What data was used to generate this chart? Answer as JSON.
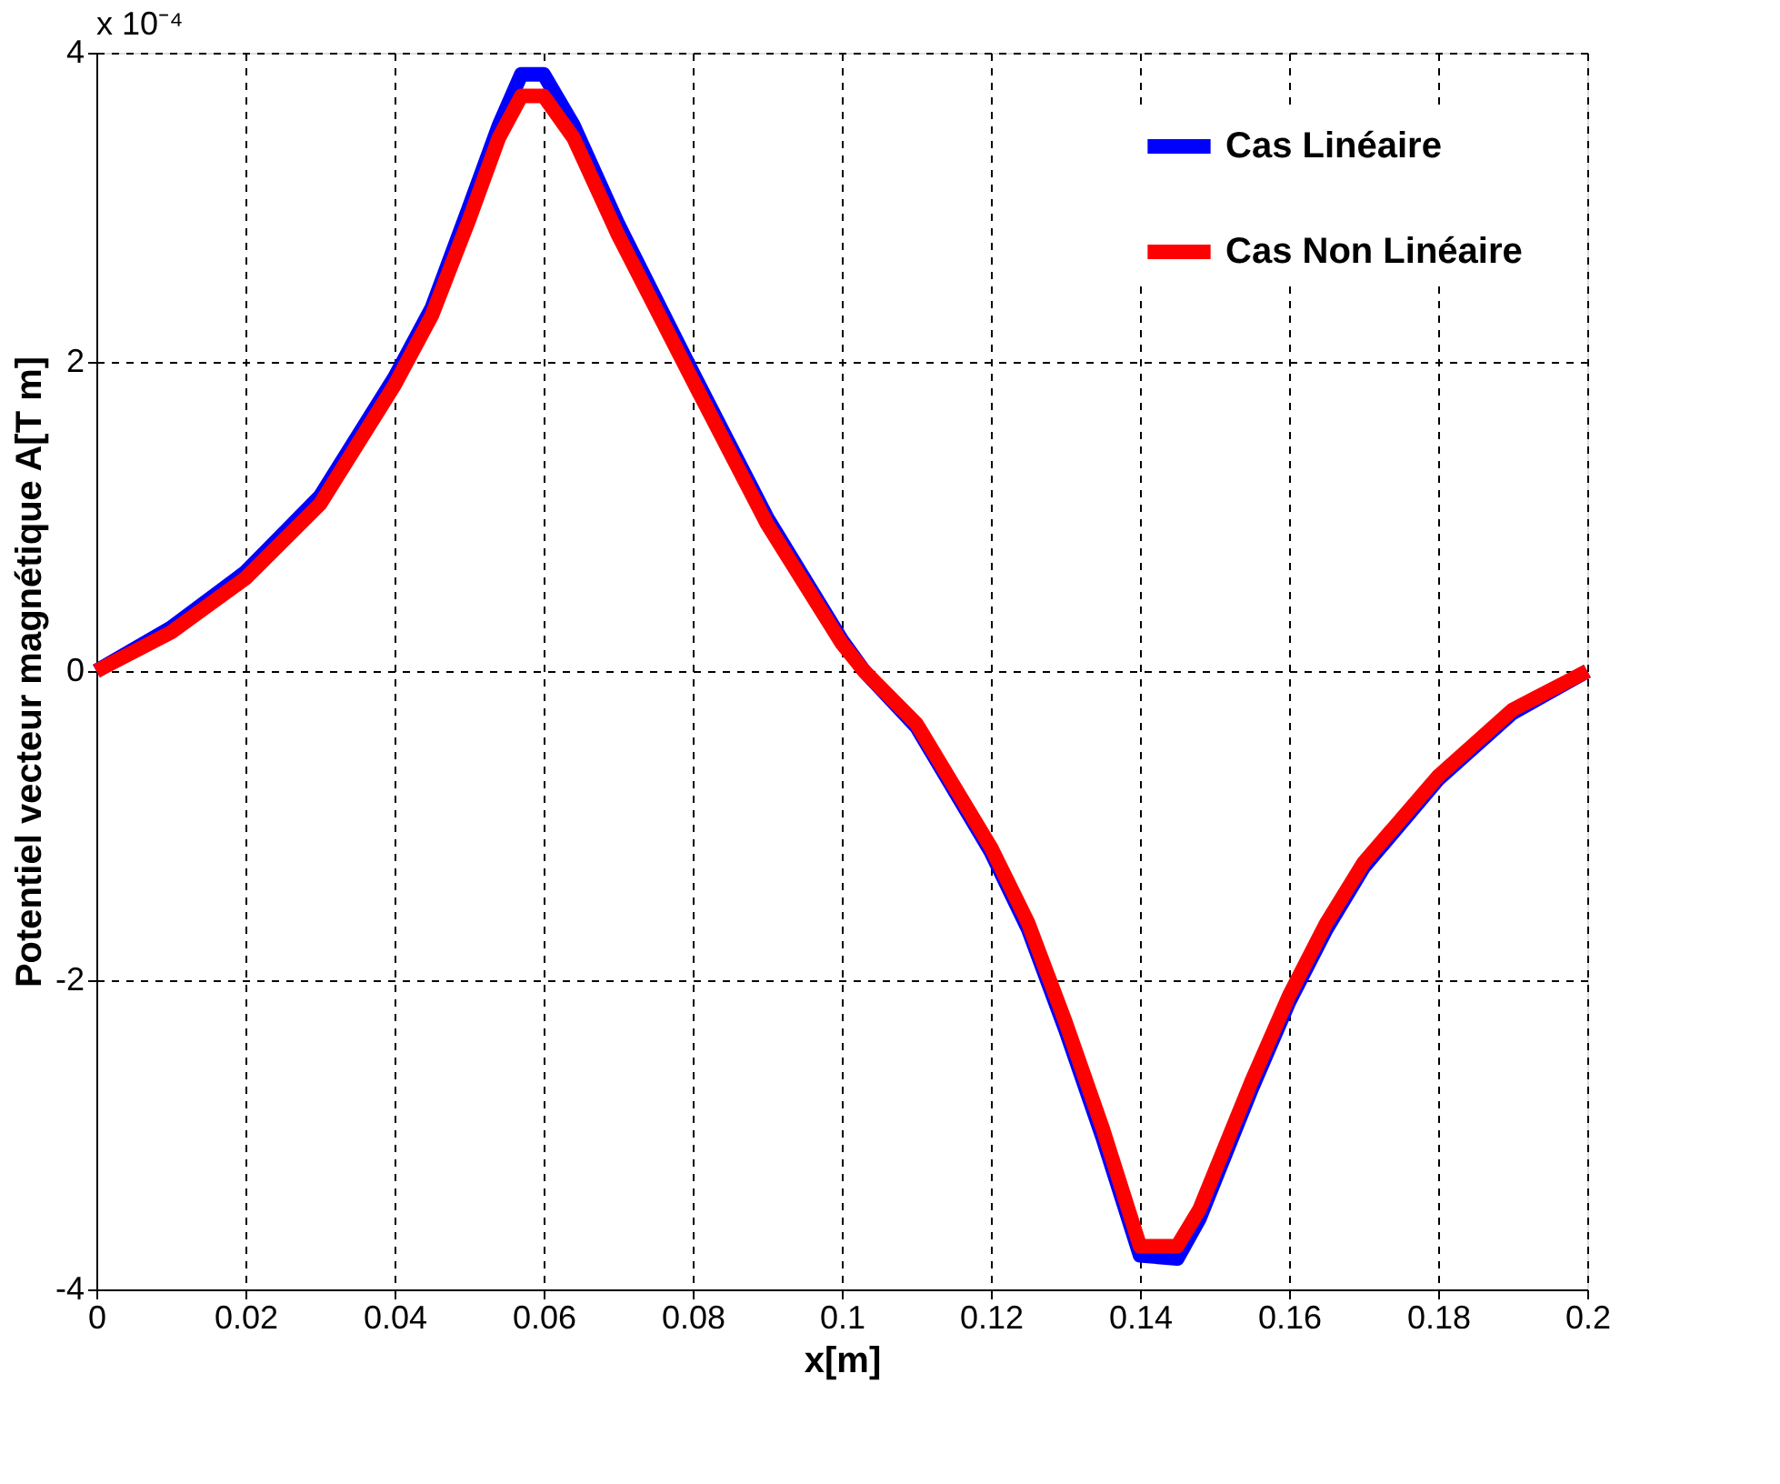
{
  "chart_data": {
    "type": "line",
    "xlabel": "x[m]",
    "ylabel": "Potentiel vecteur magnétique A[T m]",
    "annotations": [
      "x 10⁻⁴"
    ],
    "x": [
      0,
      0.01,
      0.02,
      0.03,
      0.04,
      0.045,
      0.05,
      0.054,
      0.057,
      0.06,
      0.064,
      0.07,
      0.08,
      0.09,
      0.1,
      0.103,
      0.11,
      0.12,
      0.125,
      0.13,
      0.135,
      0.14,
      0.145,
      0.148,
      0.155,
      0.16,
      0.165,
      0.17,
      0.18,
      0.19,
      0.2
    ],
    "series": [
      {
        "name": "Cas Linéaire",
        "color": "#0000ff",
        "values": [
          0,
          0.28,
          0.64,
          1.13,
          1.9,
          2.35,
          3.0,
          3.53,
          3.86,
          3.86,
          3.53,
          2.89,
          1.93,
          0.99,
          0.2,
          0,
          -0.36,
          -1.17,
          -1.67,
          -2.32,
          -3.02,
          -3.78,
          -3.8,
          -3.54,
          -2.7,
          -2.14,
          -1.67,
          -1.27,
          -0.7,
          -0.27,
          0
        ]
      },
      {
        "name": "Cas  Non Linéaire",
        "color": "#ff0000",
        "values": [
          0,
          0.25,
          0.6,
          1.08,
          1.85,
          2.3,
          2.92,
          3.45,
          3.72,
          3.72,
          3.45,
          2.82,
          1.88,
          0.95,
          0.18,
          0,
          -0.34,
          -1.14,
          -1.63,
          -2.27,
          -2.96,
          -3.72,
          -3.72,
          -3.48,
          -2.65,
          -2.1,
          -1.63,
          -1.24,
          -0.68,
          -0.25,
          0
        ]
      }
    ],
    "xlim": [
      0,
      0.2
    ],
    "xticks": [
      0,
      0.02,
      0.04,
      0.06,
      0.08,
      0.1,
      0.12,
      0.14,
      0.16,
      0.18,
      0.2
    ],
    "ylim": [
      -4,
      4
    ],
    "yticks": [
      -4,
      -2,
      0,
      2,
      4
    ],
    "grid": true,
    "legend": "top right",
    "marker": "none",
    "line_style": "solid"
  }
}
